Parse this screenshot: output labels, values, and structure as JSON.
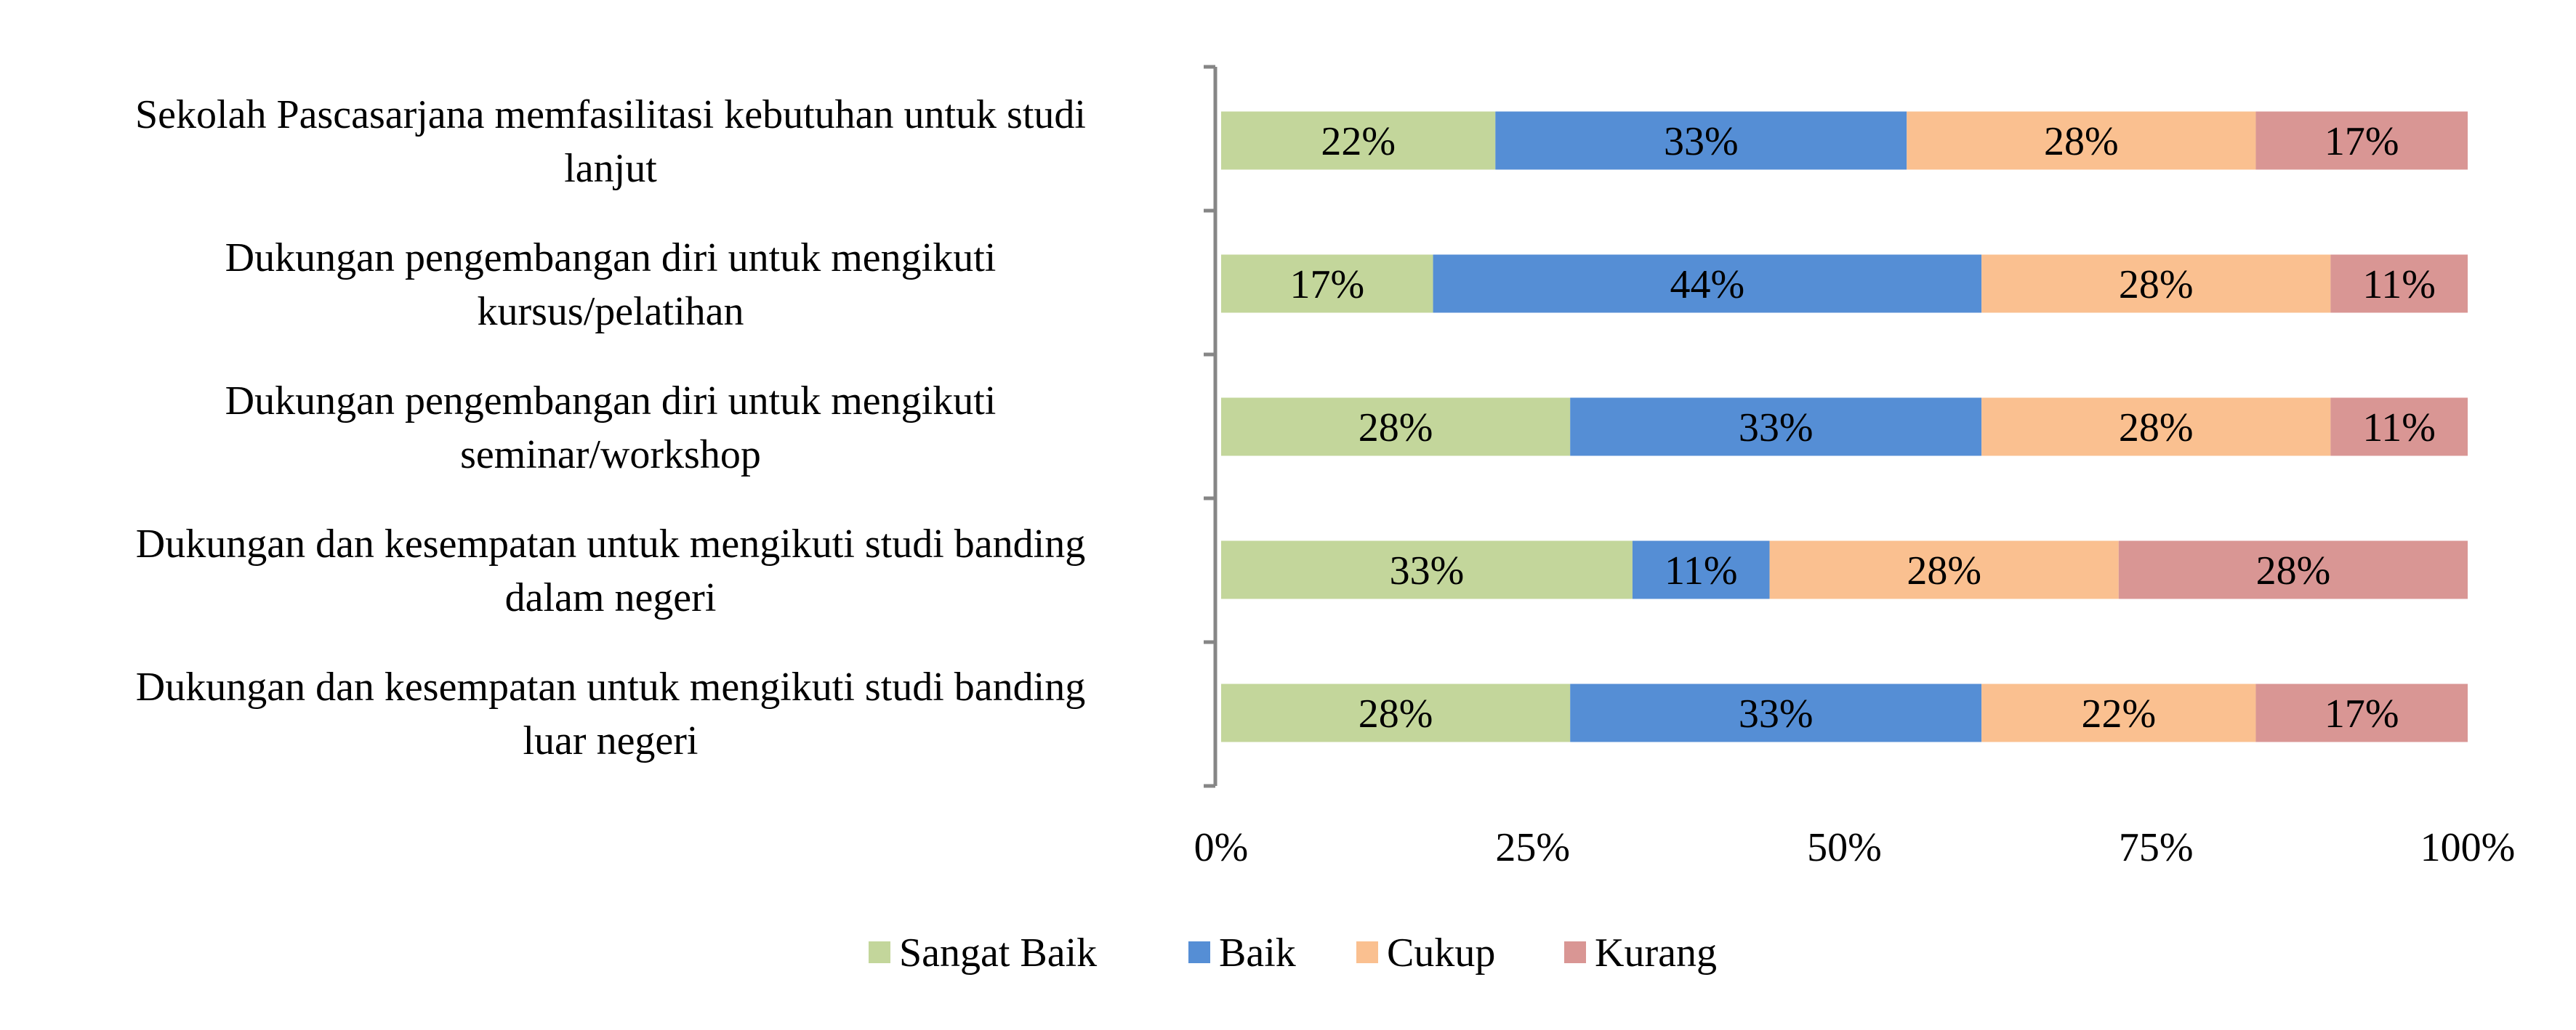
{
  "chart_data": {
    "type": "bar",
    "orientation": "horizontal",
    "stacked": "percent",
    "categories": [
      [
        "Sekolah Pascasarjana memfasilitasi kebutuhan untuk studi",
        "lanjut"
      ],
      [
        "Dukungan pengembangan diri untuk mengikuti",
        "kursus/pelatihan"
      ],
      [
        "Dukungan pengembangan diri untuk mengikuti",
        "seminar/workshop"
      ],
      [
        "Dukungan dan kesempatan untuk mengikuti studi banding",
        "dalam negeri"
      ],
      [
        "Dukungan dan kesempatan untuk mengikuti studi banding",
        "luar negeri"
      ]
    ],
    "series": [
      {
        "name": "Sangat Baik",
        "color": "#c3d69b",
        "values": [
          22,
          17,
          28,
          33,
          28
        ],
        "labels": [
          "22%",
          "17%",
          "28%",
          "33%",
          "28%"
        ]
      },
      {
        "name": "Baik",
        "color": "#558ed5",
        "values": [
          33,
          44,
          33,
          11,
          33
        ],
        "labels": [
          "33%",
          "44%",
          "33%",
          "11%",
          "33%"
        ]
      },
      {
        "name": "Cukup",
        "color": "#fac090",
        "values": [
          28,
          28,
          28,
          28,
          22
        ],
        "labels": [
          "28%",
          "28%",
          "28%",
          "28%",
          "22%"
        ]
      },
      {
        "name": "Kurang",
        "color": "#d99694",
        "values": [
          17,
          11,
          11,
          28,
          17
        ],
        "labels": [
          "17%",
          "11%",
          "11%",
          "28%",
          "17%"
        ]
      }
    ],
    "xlim": [
      0,
      100
    ],
    "xticks": [
      0,
      25,
      50,
      75,
      100
    ],
    "xtick_labels": [
      "0%",
      "25%",
      "50%",
      "75%",
      "100%"
    ],
    "grid": false,
    "legend": "bottom"
  }
}
